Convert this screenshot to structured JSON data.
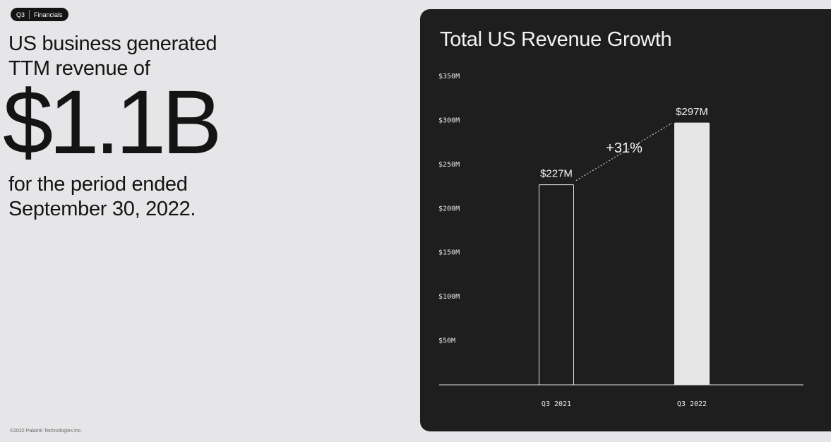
{
  "tag": {
    "quarter": "Q3",
    "section": "Financials"
  },
  "headline": {
    "line1": "US business generated",
    "line2": "TTM revenue of"
  },
  "big_number": "$1.1B",
  "period": {
    "line1": "for the period ended",
    "line2": "September 30, 2022."
  },
  "footer": "©2022 Palantir Technologies Inc.",
  "colors": {
    "panel": "#1e1e1e",
    "bar_current": "#e6e6e6",
    "bar_outline": "#e6e6e6",
    "axis": "#e6e6e6"
  },
  "chart_data": {
    "type": "bar",
    "title": "Total US Revenue Growth",
    "categories": [
      "Q3 2021",
      "Q3 2022"
    ],
    "values": [
      227,
      297
    ],
    "value_labels": [
      "$227M",
      "$297M"
    ],
    "bar_styles": [
      "outline",
      "filled"
    ],
    "y_ticks": [
      50,
      100,
      150,
      200,
      250,
      300,
      350
    ],
    "y_tick_labels": [
      "$50M",
      "$100M",
      "$150M",
      "$200M",
      "$250M",
      "$300M",
      "$350M"
    ],
    "ylim": [
      0,
      350
    ],
    "grid": false,
    "annotation": {
      "label": "+31%",
      "style": "dotted-connector"
    }
  }
}
